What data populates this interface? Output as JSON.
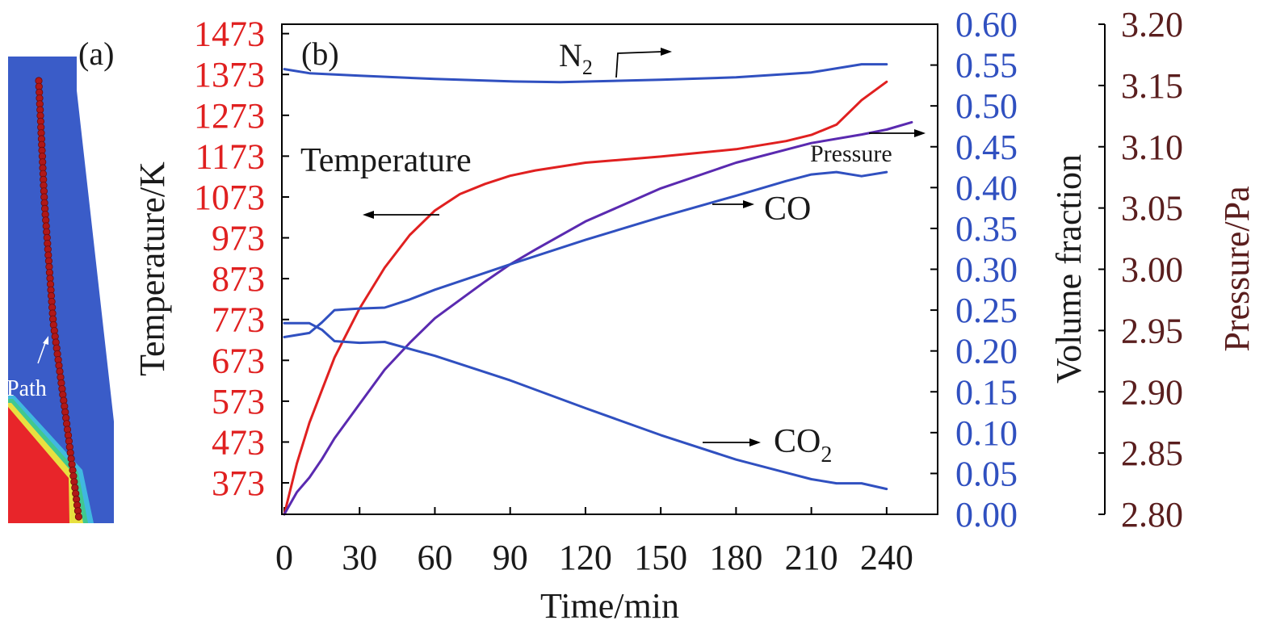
{
  "panel_a": {
    "label": "(a)",
    "path_label": "Path",
    "colors": {
      "background": "#3a5cc8",
      "hot": "#e8252a",
      "band_yellow": "#e8e040",
      "band_green": "#40c890",
      "band_cyan": "#40b8e0",
      "particle": "#b01818"
    }
  },
  "panel_b": {
    "label": "(b)",
    "annotations": {
      "n2_main": "N",
      "n2_sub": "2",
      "temperature": "Temperature",
      "pressure": "Pressure",
      "co": "CO",
      "co2_main": "CO",
      "co2_sub": "2"
    }
  },
  "colors": {
    "temperature": "#e02020",
    "volume": "#3050c0",
    "pressure": "#5a2ab0",
    "pressure_axis": "#5a1e1e",
    "frame": "#000000"
  },
  "chart_data": {
    "type": "line",
    "xlabel": "Time/min",
    "x_ticks": [
      0,
      30,
      60,
      90,
      120,
      150,
      180,
      210,
      240
    ],
    "xlim": [
      0,
      260
    ],
    "axes": {
      "temperature": {
        "label": "Temperature/K",
        "ticks": [
          373,
          473,
          573,
          673,
          773,
          873,
          973,
          1073,
          1173,
          1273,
          1373,
          1473
        ],
        "lim": [
          296,
          1496
        ]
      },
      "volume_fraction": {
        "label": "Volume fraction",
        "ticks": [
          "0.00",
          "0.05",
          "0.10",
          "0.15",
          "0.20",
          "0.25",
          "0.30",
          "0.35",
          "0.40",
          "0.45",
          "0.50",
          "0.55",
          "0.60"
        ],
        "lim": [
          0,
          0.6
        ]
      },
      "pressure": {
        "label": "Pressure/Pa",
        "ticks": [
          "2.80",
          "2.85",
          "2.90",
          "2.95",
          "3.00",
          "3.05",
          "3.10",
          "3.15",
          "3.20"
        ],
        "lim": [
          2.8,
          3.2
        ]
      }
    },
    "series": [
      {
        "name": "Temperature",
        "axis": "temperature",
        "x": [
          0,
          5,
          10,
          15,
          20,
          30,
          40,
          50,
          60,
          70,
          80,
          90,
          100,
          120,
          150,
          180,
          200,
          210,
          220,
          225,
          230,
          240
        ],
        "values": [
          296,
          420,
          520,
          600,
          680,
          800,
          900,
          980,
          1040,
          1080,
          1105,
          1125,
          1138,
          1157,
          1172,
          1190,
          1210,
          1225,
          1250,
          1280,
          1310,
          1355
        ]
      },
      {
        "name": "Pressure",
        "axis": "pressure",
        "x": [
          0,
          5,
          10,
          15,
          20,
          30,
          40,
          50,
          60,
          70,
          80,
          90,
          100,
          120,
          150,
          180,
          210,
          230,
          240,
          250
        ],
        "values": [
          2.8,
          2.818,
          2.83,
          2.845,
          2.862,
          2.89,
          2.918,
          2.94,
          2.96,
          2.975,
          2.99,
          3.004,
          3.016,
          3.039,
          3.066,
          3.087,
          3.103,
          3.11,
          3.114,
          3.12
        ]
      },
      {
        "name": "N2",
        "axis": "volume_fraction",
        "x": [
          0,
          10,
          30,
          60,
          90,
          110,
          150,
          180,
          210,
          230,
          240
        ],
        "values": [
          0.545,
          0.54,
          0.537,
          0.533,
          0.53,
          0.529,
          0.532,
          0.535,
          0.541,
          0.551,
          0.551
        ]
      },
      {
        "name": "CO",
        "axis": "volume_fraction",
        "x": [
          0,
          10,
          15,
          20,
          30,
          40,
          50,
          60,
          90,
          120,
          150,
          180,
          200,
          210,
          220,
          230,
          240
        ],
        "values": [
          0.217,
          0.222,
          0.235,
          0.25,
          0.252,
          0.253,
          0.263,
          0.275,
          0.306,
          0.336,
          0.364,
          0.39,
          0.408,
          0.416,
          0.419,
          0.414,
          0.419
        ]
      },
      {
        "name": "CO2",
        "axis": "volume_fraction",
        "x": [
          0,
          10,
          15,
          20,
          30,
          40,
          60,
          90,
          120,
          150,
          180,
          200,
          210,
          220,
          230,
          240
        ],
        "values": [
          0.234,
          0.234,
          0.226,
          0.212,
          0.21,
          0.211,
          0.194,
          0.164,
          0.13,
          0.097,
          0.067,
          0.051,
          0.043,
          0.038,
          0.038,
          0.031
        ]
      }
    ]
  }
}
